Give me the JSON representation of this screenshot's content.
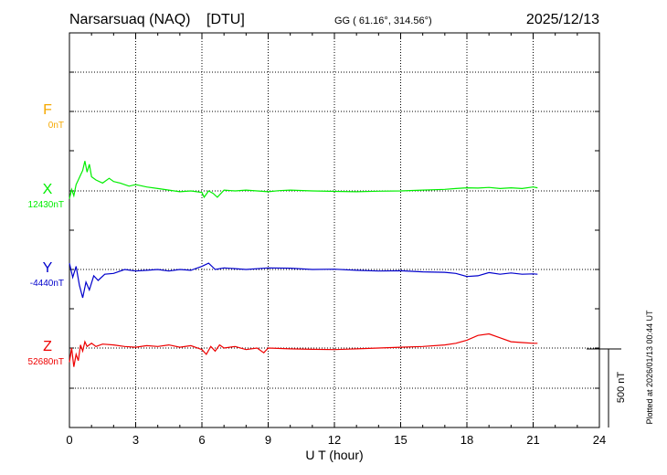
{
  "header": {
    "station": "Narsarsuaq (NAQ)",
    "institute": "[DTU]",
    "coords": "GG ( 61.16°, 314.56°)",
    "date": "2025/12/13"
  },
  "side_note": "Plotted at 2026/01/13 00:44 UT",
  "scale_bar": {
    "label": "500 nT",
    "value_nT": 500
  },
  "colors": {
    "F": "#f5a800",
    "X": "#00ee00",
    "Y": "#0000cc",
    "Z": "#ee0000",
    "axis": "#000000",
    "grid": "#000000"
  },
  "chart_data": {
    "type": "line",
    "xlabel": "U T (hour)",
    "xlim": [
      0,
      24
    ],
    "xticks": [
      "0",
      "3",
      "6",
      "9",
      "12",
      "15",
      "18",
      "21",
      "24"
    ],
    "grid": "dotted",
    "series": [
      {
        "name": "F",
        "baseline_label": "0nT",
        "baseline": 0,
        "x": [],
        "y": []
      },
      {
        "name": "X",
        "baseline_label": "12430nT",
        "baseline": 12430,
        "x": [
          0,
          0.1,
          0.2,
          0.3,
          0.4,
          0.5,
          0.6,
          0.7,
          0.8,
          0.9,
          1.0,
          1.2,
          1.5,
          1.8,
          2.0,
          2.3,
          2.7,
          3.0,
          3.5,
          4.0,
          4.5,
          5.0,
          5.5,
          6.0,
          6.1,
          6.3,
          6.5,
          6.7,
          7.0,
          7.5,
          8.0,
          8.5,
          9.0,
          9.5,
          10.0,
          11.0,
          12.0,
          13.0,
          14.0,
          15.0,
          16.0,
          17.0,
          17.5,
          18.0,
          18.5,
          19.0,
          19.5,
          20.0,
          20.5,
          21.0,
          21.2
        ],
        "y": [
          12380,
          12440,
          12400,
          12470,
          12500,
          12530,
          12560,
          12620,
          12550,
          12600,
          12520,
          12500,
          12480,
          12510,
          12490,
          12480,
          12460,
          12470,
          12455,
          12445,
          12435,
          12425,
          12430,
          12420,
          12390,
          12430,
          12415,
          12390,
          12435,
          12430,
          12435,
          12430,
          12425,
          12432,
          12435,
          12430,
          12427,
          12425,
          12428,
          12430,
          12435,
          12440,
          12445,
          12450,
          12448,
          12452,
          12445,
          12450,
          12445,
          12455,
          12450
        ]
      },
      {
        "name": "Y",
        "baseline_label": "-4440nT",
        "baseline": -4440,
        "x": [
          0,
          0.15,
          0.3,
          0.45,
          0.6,
          0.75,
          0.9,
          1.1,
          1.3,
          1.6,
          2.0,
          2.5,
          3.0,
          3.5,
          4.0,
          4.5,
          5.0,
          5.5,
          6.0,
          6.3,
          6.6,
          7.0,
          7.5,
          8.0,
          9.0,
          10.0,
          11.0,
          12.0,
          13.0,
          14.0,
          15.0,
          16.0,
          17.0,
          17.5,
          18.0,
          18.5,
          19.0,
          19.5,
          20.0,
          20.5,
          21.0,
          21.2
        ],
        "y": [
          -4400,
          -4490,
          -4420,
          -4540,
          -4620,
          -4520,
          -4570,
          -4480,
          -4510,
          -4470,
          -4465,
          -4440,
          -4450,
          -4445,
          -4440,
          -4450,
          -4440,
          -4445,
          -4420,
          -4400,
          -4440,
          -4430,
          -4435,
          -4440,
          -4430,
          -4432,
          -4440,
          -4438,
          -4445,
          -4450,
          -4448,
          -4455,
          -4458,
          -4465,
          -4485,
          -4480,
          -4460,
          -4470,
          -4462,
          -4470,
          -4468,
          -4470
        ]
      },
      {
        "name": "Z",
        "baseline_label": "52680nT",
        "baseline": 52680,
        "x": [
          0,
          0.1,
          0.2,
          0.3,
          0.4,
          0.5,
          0.6,
          0.7,
          0.8,
          1.0,
          1.2,
          1.5,
          2.0,
          2.5,
          3.0,
          3.5,
          4.0,
          4.5,
          5.0,
          5.5,
          6.0,
          6.2,
          6.4,
          6.6,
          6.8,
          7.0,
          7.5,
          8.0,
          8.5,
          8.8,
          9.0,
          10.0,
          11.0,
          12.0,
          13.0,
          14.0,
          15.0,
          16.0,
          17.0,
          17.5,
          18.0,
          18.5,
          19.0,
          19.5,
          20.0,
          20.5,
          21.0,
          21.2
        ],
        "y": [
          52590,
          52680,
          52560,
          52640,
          52600,
          52700,
          52660,
          52720,
          52690,
          52710,
          52690,
          52705,
          52700,
          52690,
          52685,
          52695,
          52690,
          52700,
          52685,
          52695,
          52670,
          52640,
          52690,
          52660,
          52700,
          52680,
          52690,
          52670,
          52680,
          52650,
          52680,
          52675,
          52672,
          52670,
          52675,
          52680,
          52685,
          52690,
          52700,
          52710,
          52730,
          52760,
          52770,
          52745,
          52720,
          52715,
          52710,
          52710
        ]
      }
    ]
  }
}
